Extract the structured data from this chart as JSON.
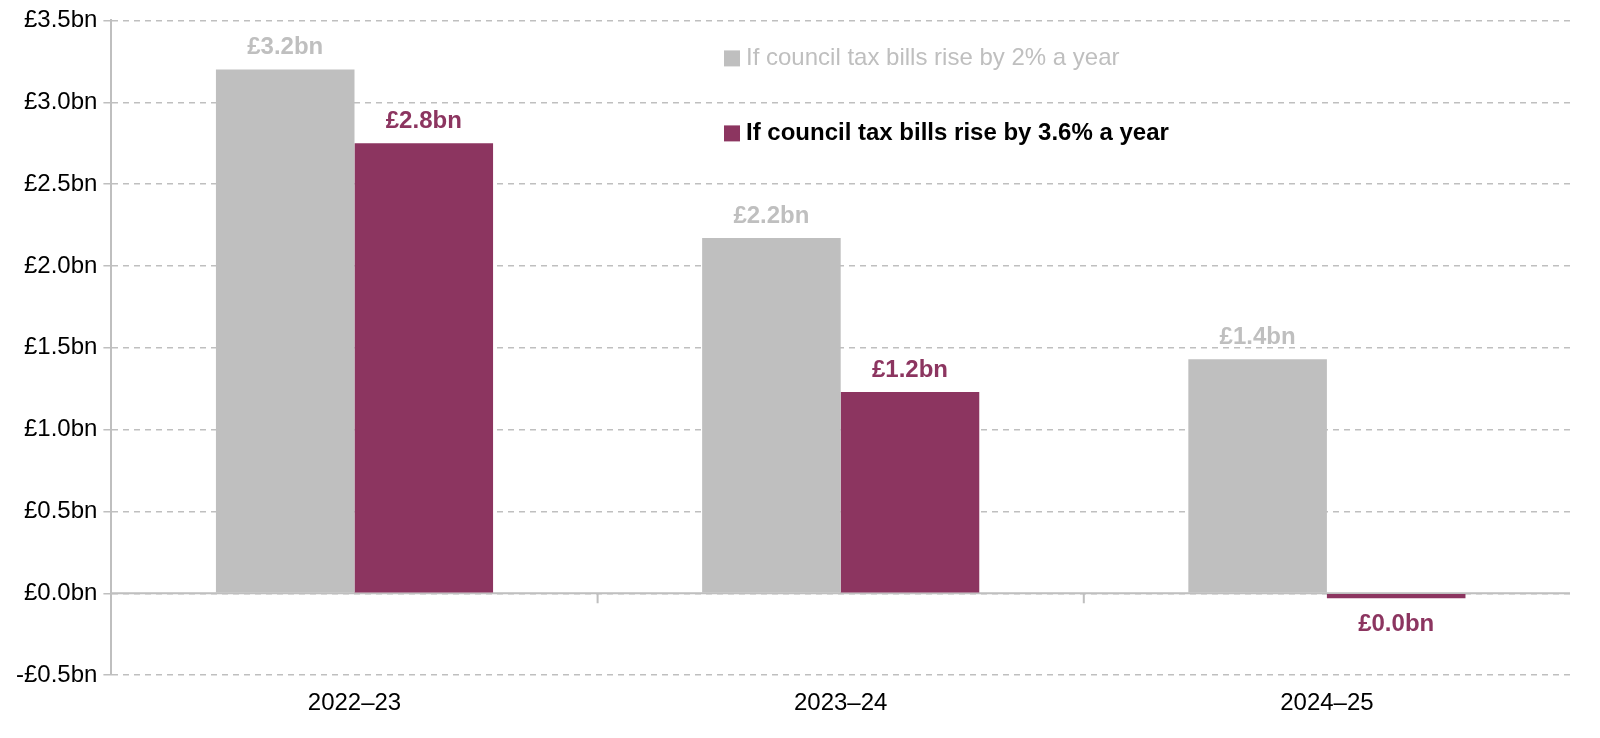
{
  "chart_data": {
    "type": "bar",
    "categories": [
      "2022–23",
      "2023–24",
      "2024–25"
    ],
    "series": [
      {
        "name": "If council tax bills rise by 2% a year",
        "color": "#bfbfbf",
        "values": [
          3.2,
          2.17,
          1.43
        ],
        "value_labels": [
          "£3.2bn",
          "£2.2bn",
          "£1.4bn"
        ]
      },
      {
        "name": "If council tax bills rise by 3.6% a year",
        "color": "#8c3560",
        "values": [
          2.75,
          1.23,
          -0.03
        ],
        "value_labels": [
          "£2.8bn",
          "£1.2bn",
          "£0.0bn"
        ]
      }
    ],
    "ylim": [
      -0.5,
      3.5
    ],
    "yticks": [
      {
        "value": -0.5,
        "label": "-£0.5bn"
      },
      {
        "value": 0,
        "label": "£0.0bn"
      },
      {
        "value": 0.5,
        "label": "£0.5bn"
      },
      {
        "value": 1,
        "label": "£1.0bn"
      },
      {
        "value": 1.5,
        "label": "£1.5bn"
      },
      {
        "value": 2,
        "label": "£2.0bn"
      },
      {
        "value": 2.5,
        "label": "£2.5bn"
      },
      {
        "value": 3,
        "label": "£3.0bn"
      },
      {
        "value": 3.5,
        "label": "£3.5bn"
      }
    ],
    "grid": "y",
    "legend": "top"
  }
}
